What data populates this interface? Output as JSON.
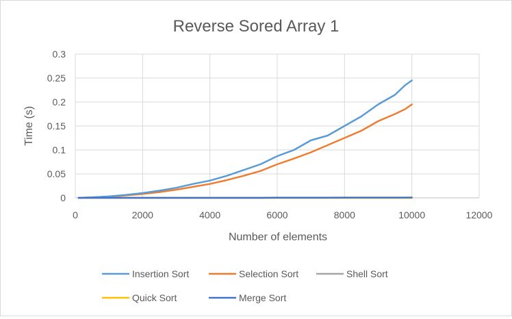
{
  "chart_data": {
    "type": "line",
    "title": "Reverse Sored Array 1",
    "xlabel": "Number of elements",
    "ylabel": "Time (s)",
    "xlim": [
      0,
      12000
    ],
    "ylim": [
      0,
      0.3
    ],
    "x_ticks": [
      "0",
      "2000",
      "4000",
      "6000",
      "8000",
      "10000",
      "12000"
    ],
    "y_ticks": [
      "0",
      "0.05",
      "0.1",
      "0.15",
      "0.2",
      "0.25",
      "0.3"
    ],
    "grid": true,
    "legend_position": "bottom",
    "x": [
      100,
      500,
      1000,
      1500,
      2000,
      2500,
      3000,
      3500,
      4000,
      4500,
      5000,
      5500,
      6000,
      6500,
      7000,
      7500,
      8000,
      8500,
      9000,
      9500,
      9800,
      10000
    ],
    "series": [
      {
        "name": "Insertion Sort",
        "color": "#5b9bd5",
        "values": [
          0.0,
          0.001,
          0.003,
          0.006,
          0.01,
          0.015,
          0.021,
          0.029,
          0.036,
          0.046,
          0.058,
          0.07,
          0.087,
          0.1,
          0.12,
          0.13,
          0.15,
          0.17,
          0.195,
          0.215,
          0.235,
          0.245
        ]
      },
      {
        "name": "Selection Sort",
        "color": "#ed7d31",
        "values": [
          0.0,
          0.001,
          0.0025,
          0.005,
          0.008,
          0.012,
          0.017,
          0.023,
          0.029,
          0.037,
          0.046,
          0.056,
          0.07,
          0.082,
          0.095,
          0.11,
          0.125,
          0.14,
          0.16,
          0.175,
          0.185,
          0.195
        ]
      },
      {
        "name": "Shell Sort",
        "color": "#a5a5a5",
        "values": [
          0,
          0,
          0,
          0,
          0,
          0,
          0,
          0,
          0,
          0,
          0,
          0,
          0,
          0,
          0,
          0,
          0,
          0,
          0,
          0,
          0,
          0
        ]
      },
      {
        "name": "Quick Sort",
        "color": "#ffc000",
        "values": [
          0,
          0,
          0,
          0,
          0,
          0,
          0,
          0,
          0,
          0,
          0,
          0,
          0,
          0,
          0,
          0,
          0,
          0,
          0,
          0,
          0,
          0
        ]
      },
      {
        "name": "Merge Sort",
        "color": "#4472c4",
        "values": [
          0,
          0,
          0,
          0,
          0,
          0,
          0,
          0,
          0,
          0,
          0,
          0,
          0.0003,
          0.0003,
          0.0004,
          0.0004,
          0.0005,
          0.0005,
          0.0006,
          0.0006,
          0.0006,
          0.0007
        ]
      }
    ]
  }
}
